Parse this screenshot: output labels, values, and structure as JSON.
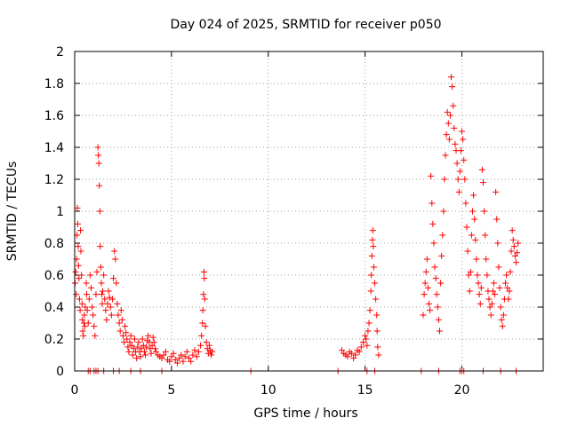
{
  "chart_data": {
    "type": "scatter",
    "title": "Day 024 of 2025, SRMTID for receiver p050",
    "xlabel": "GPS time / hours",
    "ylabel": "SRMTID / TECUs",
    "xlim": [
      0,
      24.2
    ],
    "ylim": [
      0,
      2
    ],
    "xticks": [
      0,
      5,
      10,
      15,
      20
    ],
    "xtick_labels": [
      "0",
      "5",
      "10",
      "15",
      "20"
    ],
    "yticks": [
      0,
      0.2,
      0.4,
      0.6,
      0.8,
      1,
      1.2,
      1.4,
      1.6,
      1.8,
      2
    ],
    "ytick_labels": [
      "0",
      "0.2",
      "0.4",
      "0.6",
      "0.8",
      "1",
      "1.2",
      "1.4",
      "1.6",
      "1.8",
      "2"
    ],
    "grid": true,
    "marker": "+",
    "color": "#ff0000",
    "series": [
      {
        "name": "SRMTID",
        "points": [
          [
            0.02,
            0.55
          ],
          [
            0.05,
            0.62
          ],
          [
            0.08,
            0.48
          ],
          [
            0.1,
            0.7
          ],
          [
            0.12,
            0.85
          ],
          [
            0.14,
            1.02
          ],
          [
            0.16,
            0.92
          ],
          [
            0.18,
            0.78
          ],
          [
            0.2,
            0.66
          ],
          [
            0.22,
            0.58
          ],
          [
            0.25,
            0.45
          ],
          [
            0.28,
            0.38
          ],
          [
            0.3,
            0.88
          ],
          [
            0.32,
            0.75
          ],
          [
            0.35,
            0.6
          ],
          [
            0.38,
            0.42
          ],
          [
            0.4,
            0.32
          ],
          [
            0.42,
            0.25
          ],
          [
            0.45,
            0.22
          ],
          [
            0.48,
            0.3
          ],
          [
            0.5,
            0.35
          ],
          [
            0.52,
            0.28
          ],
          [
            0.55,
            0.4
          ],
          [
            0.6,
            0.55
          ],
          [
            0.62,
            0.48
          ],
          [
            0.65,
            0.38
          ],
          [
            0.7,
            0.3
          ],
          [
            0.75,
            0.45
          ],
          [
            0.8,
            0.6
          ],
          [
            0.85,
            0.52
          ],
          [
            0.9,
            0.4
          ],
          [
            0.95,
            0.35
          ],
          [
            1.0,
            0.28
          ],
          [
            1.05,
            0.22
          ],
          [
            1.1,
            0.48
          ],
          [
            1.15,
            0.62
          ],
          [
            1.2,
            1.4
          ],
          [
            1.22,
            1.35
          ],
          [
            1.25,
            1.3
          ],
          [
            1.27,
            1.16
          ],
          [
            1.3,
            1.0
          ],
          [
            1.32,
            0.78
          ],
          [
            1.35,
            0.65
          ],
          [
            1.38,
            0.55
          ],
          [
            1.4,
            0.48
          ],
          [
            1.42,
            0.42
          ],
          [
            1.45,
            0.5
          ],
          [
            1.5,
            0.6
          ],
          [
            1.55,
            0.45
          ],
          [
            1.6,
            0.38
          ],
          [
            1.65,
            0.32
          ],
          [
            1.7,
            0.42
          ],
          [
            1.75,
            0.5
          ],
          [
            1.8,
            0.46
          ],
          [
            1.85,
            0.4
          ],
          [
            1.9,
            0.35
          ],
          [
            1.95,
            0.45
          ],
          [
            2.0,
            0.58
          ],
          [
            2.05,
            0.75
          ],
          [
            2.1,
            0.7
          ],
          [
            2.15,
            0.55
          ],
          [
            2.2,
            0.42
          ],
          [
            2.25,
            0.35
          ],
          [
            2.3,
            0.3
          ],
          [
            2.35,
            0.25
          ],
          [
            2.4,
            0.38
          ],
          [
            2.45,
            0.32
          ],
          [
            2.5,
            0.22
          ],
          [
            2.55,
            0.18
          ],
          [
            2.6,
            0.28
          ],
          [
            2.65,
            0.24
          ],
          [
            2.7,
            0.2
          ],
          [
            2.75,
            0.15
          ],
          [
            2.8,
            0.12
          ],
          [
            2.85,
            0.18
          ],
          [
            2.9,
            0.22
          ],
          [
            2.95,
            0.16
          ],
          [
            3.0,
            0.1
          ],
          [
            3.05,
            0.14
          ],
          [
            3.1,
            0.2
          ],
          [
            3.15,
            0.12
          ],
          [
            3.2,
            0.08
          ],
          [
            3.25,
            0.15
          ],
          [
            3.3,
            0.18
          ],
          [
            3.35,
            0.12
          ],
          [
            3.4,
            0.09
          ],
          [
            3.45,
            0.14
          ],
          [
            3.5,
            0.2
          ],
          [
            3.55,
            0.16
          ],
          [
            3.6,
            0.12
          ],
          [
            3.65,
            0.1
          ],
          [
            3.7,
            0.15
          ],
          [
            3.75,
            0.19
          ],
          [
            3.8,
            0.22
          ],
          [
            3.85,
            0.18
          ],
          [
            3.9,
            0.14
          ],
          [
            3.95,
            0.11
          ],
          [
            4.0,
            0.16
          ],
          [
            4.05,
            0.21
          ],
          [
            4.1,
            0.18
          ],
          [
            4.15,
            0.14
          ],
          [
            4.2,
            0.12
          ],
          [
            4.3,
            0.1
          ],
          [
            4.4,
            0.09
          ],
          [
            4.5,
            0.08
          ],
          [
            4.6,
            0.1
          ],
          [
            4.7,
            0.12
          ],
          [
            4.8,
            0.07
          ],
          [
            4.9,
            0.06
          ],
          [
            5.0,
            0.09
          ],
          [
            5.1,
            0.11
          ],
          [
            5.2,
            0.07
          ],
          [
            5.3,
            0.05
          ],
          [
            5.4,
            0.08
          ],
          [
            5.5,
            0.1
          ],
          [
            5.6,
            0.06
          ],
          [
            5.7,
            0.09
          ],
          [
            5.8,
            0.12
          ],
          [
            5.9,
            0.08
          ],
          [
            6.0,
            0.06
          ],
          [
            6.1,
            0.1
          ],
          [
            6.2,
            0.13
          ],
          [
            6.3,
            0.09
          ],
          [
            6.4,
            0.12
          ],
          [
            6.5,
            0.16
          ],
          [
            6.55,
            0.22
          ],
          [
            6.6,
            0.3
          ],
          [
            6.62,
            0.38
          ],
          [
            6.65,
            0.48
          ],
          [
            6.68,
            0.62
          ],
          [
            6.7,
            0.58
          ],
          [
            6.72,
            0.45
          ],
          [
            6.75,
            0.28
          ],
          [
            6.8,
            0.18
          ],
          [
            6.85,
            0.14
          ],
          [
            6.9,
            0.11
          ],
          [
            6.95,
            0.16
          ],
          [
            7.0,
            0.13
          ],
          [
            7.05,
            0.1
          ],
          [
            7.1,
            0.12
          ],
          [
            13.8,
            0.13
          ],
          [
            13.9,
            0.11
          ],
          [
            14.0,
            0.1
          ],
          [
            14.1,
            0.09
          ],
          [
            14.2,
            0.12
          ],
          [
            14.3,
            0.11
          ],
          [
            14.4,
            0.08
          ],
          [
            14.5,
            0.1
          ],
          [
            14.6,
            0.13
          ],
          [
            14.7,
            0.12
          ],
          [
            14.8,
            0.15
          ],
          [
            14.9,
            0.18
          ],
          [
            15.0,
            0.22
          ],
          [
            15.05,
            0.2
          ],
          [
            15.1,
            0.16
          ],
          [
            15.15,
            0.25
          ],
          [
            15.2,
            0.3
          ],
          [
            15.25,
            0.38
          ],
          [
            15.3,
            0.5
          ],
          [
            15.32,
            0.6
          ],
          [
            15.35,
            0.72
          ],
          [
            15.38,
            0.82
          ],
          [
            15.4,
            0.88
          ],
          [
            15.42,
            0.78
          ],
          [
            15.45,
            0.65
          ],
          [
            15.5,
            0.55
          ],
          [
            15.55,
            0.45
          ],
          [
            15.6,
            0.35
          ],
          [
            15.62,
            0.25
          ],
          [
            15.65,
            0.15
          ],
          [
            15.7,
            0.1
          ],
          [
            18.0,
            0.35
          ],
          [
            18.05,
            0.48
          ],
          [
            18.1,
            0.55
          ],
          [
            18.15,
            0.62
          ],
          [
            18.2,
            0.7
          ],
          [
            18.25,
            0.52
          ],
          [
            18.3,
            0.42
          ],
          [
            18.35,
            0.38
          ],
          [
            18.4,
            1.22
          ],
          [
            18.45,
            1.05
          ],
          [
            18.5,
            0.92
          ],
          [
            18.55,
            0.8
          ],
          [
            18.6,
            0.65
          ],
          [
            18.65,
            0.58
          ],
          [
            18.7,
            0.48
          ],
          [
            18.75,
            0.4
          ],
          [
            18.8,
            0.32
          ],
          [
            18.85,
            0.25
          ],
          [
            18.9,
            0.55
          ],
          [
            18.95,
            0.72
          ],
          [
            19.0,
            0.85
          ],
          [
            19.05,
            1.0
          ],
          [
            19.1,
            1.2
          ],
          [
            19.15,
            1.35
          ],
          [
            19.2,
            1.48
          ],
          [
            19.25,
            1.62
          ],
          [
            19.3,
            1.55
          ],
          [
            19.35,
            1.45
          ],
          [
            19.4,
            1.6
          ],
          [
            19.45,
            1.84
          ],
          [
            19.5,
            1.78
          ],
          [
            19.55,
            1.66
          ],
          [
            19.6,
            1.52
          ],
          [
            19.65,
            1.42
          ],
          [
            19.7,
            1.38
          ],
          [
            19.75,
            1.3
          ],
          [
            19.8,
            1.2
          ],
          [
            19.85,
            1.12
          ],
          [
            19.9,
            1.25
          ],
          [
            19.95,
            1.38
          ],
          [
            20.0,
            1.5
          ],
          [
            20.05,
            1.45
          ],
          [
            20.1,
            1.32
          ],
          [
            20.15,
            1.2
          ],
          [
            20.2,
            1.05
          ],
          [
            20.25,
            0.9
          ],
          [
            20.3,
            0.75
          ],
          [
            20.35,
            0.6
          ],
          [
            20.4,
            0.5
          ],
          [
            20.45,
            0.62
          ],
          [
            20.5,
            0.85
          ],
          [
            20.55,
            1.0
          ],
          [
            20.6,
            1.1
          ],
          [
            20.65,
            0.95
          ],
          [
            20.7,
            0.82
          ],
          [
            20.75,
            0.7
          ],
          [
            20.8,
            0.6
          ],
          [
            20.85,
            0.55
          ],
          [
            20.9,
            0.48
          ],
          [
            20.95,
            0.42
          ],
          [
            21.0,
            0.52
          ],
          [
            21.05,
            1.26
          ],
          [
            21.1,
            1.18
          ],
          [
            21.15,
            1.0
          ],
          [
            21.2,
            0.85
          ],
          [
            21.25,
            0.7
          ],
          [
            21.3,
            0.6
          ],
          [
            21.35,
            0.5
          ],
          [
            21.4,
            0.45
          ],
          [
            21.45,
            0.4
          ],
          [
            21.5,
            0.35
          ],
          [
            21.55,
            0.42
          ],
          [
            21.6,
            0.5
          ],
          [
            21.65,
            0.55
          ],
          [
            21.7,
            0.48
          ],
          [
            21.75,
            1.12
          ],
          [
            21.8,
            0.95
          ],
          [
            21.85,
            0.8
          ],
          [
            21.9,
            0.65
          ],
          [
            21.95,
            0.52
          ],
          [
            22.0,
            0.4
          ],
          [
            22.05,
            0.32
          ],
          [
            22.1,
            0.28
          ],
          [
            22.15,
            0.35
          ],
          [
            22.2,
            0.45
          ],
          [
            22.25,
            0.55
          ],
          [
            22.3,
            0.6
          ],
          [
            22.35,
            0.52
          ],
          [
            22.4,
            0.45
          ],
          [
            22.45,
            0.5
          ],
          [
            22.5,
            0.62
          ],
          [
            22.55,
            0.75
          ],
          [
            22.6,
            0.88
          ],
          [
            22.65,
            0.82
          ],
          [
            22.7,
            0.78
          ],
          [
            22.75,
            0.72
          ],
          [
            22.8,
            0.68
          ],
          [
            22.85,
            0.74
          ],
          [
            22.9,
            0.8
          ]
        ]
      }
    ],
    "baseline_points_x": [
      0.7,
      0.8,
      1.0,
      1.1,
      1.2,
      1.5,
      2.0,
      2.3,
      2.9,
      3.4,
      4.5,
      9.1,
      13.6,
      15.1,
      15.5,
      17.9,
      18.8,
      19.9,
      20.0,
      20.1,
      21.1,
      22.0,
      22.8
    ]
  }
}
